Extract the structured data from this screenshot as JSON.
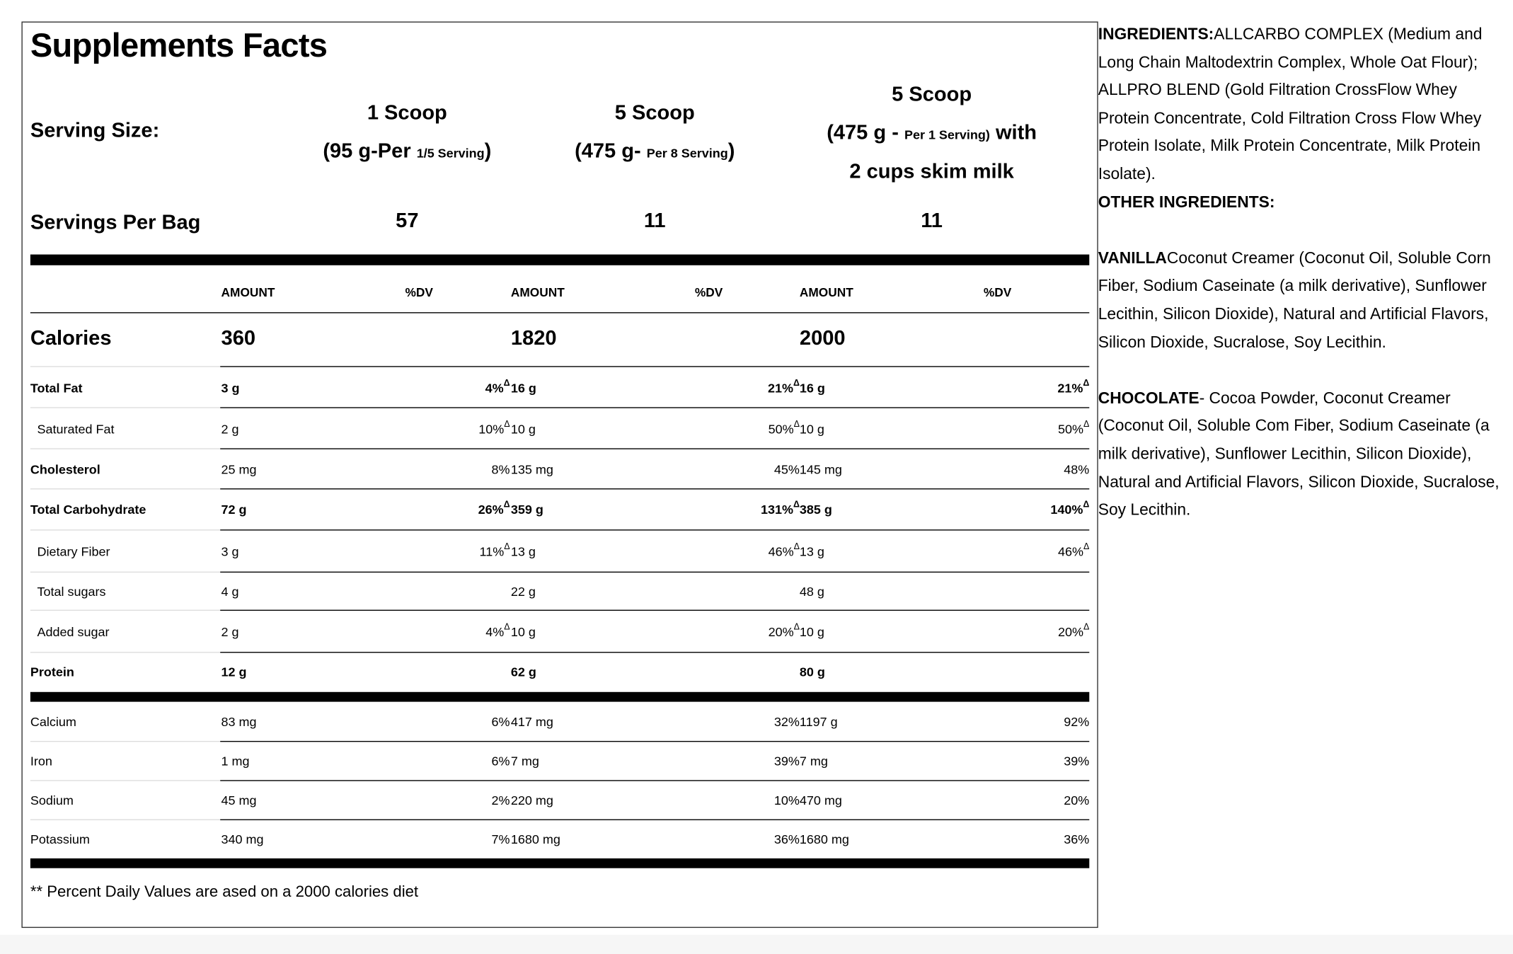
{
  "title": "Supplements Facts",
  "serving_size": {
    "label": "Serving Size:",
    "columns": [
      {
        "line1": "1 Scoop",
        "line2_main": "(95 g-Per ",
        "line2_small": "1/5 Serving",
        "line2_end": ")",
        "line3": ""
      },
      {
        "line1": "5 Scoop",
        "line2_main": "(475 g- ",
        "line2_small": "Per 8 Serving",
        "line2_end": ")",
        "line3": ""
      },
      {
        "line1": "5 Scoop",
        "line2_main": "(475 g - ",
        "line2_small": "Per 1 Serving)",
        "line2_end": " with",
        "line3": "2 cups skim milk"
      }
    ]
  },
  "servings_per_bag": {
    "label": "Servings Per Bag",
    "values": [
      "57",
      "11",
      "11"
    ]
  },
  "headers": {
    "amount": "AMOUNT",
    "dv": "%DV"
  },
  "calories": {
    "label": "Calories",
    "values": [
      "360",
      "1820",
      "2000"
    ]
  },
  "delta_symbol": "Δ",
  "nutrients": [
    {
      "label": "Total Fat",
      "bold": true,
      "indent": false,
      "cols": [
        [
          "3 g",
          "4%",
          true
        ],
        [
          "16 g",
          "21%",
          true
        ],
        [
          "16 g",
          "21%",
          true
        ]
      ]
    },
    {
      "label": "Saturated Fat",
      "bold": false,
      "indent": true,
      "cols": [
        [
          "2 g",
          "10%",
          true
        ],
        [
          "10 g",
          "50%",
          true
        ],
        [
          "10 g",
          "50%",
          true
        ]
      ]
    },
    {
      "label": "Cholesterol",
      "bold": true,
      "indent": false,
      "cols": [
        [
          "25 mg",
          "8%",
          false
        ],
        [
          "135 mg",
          "45%",
          false
        ],
        [
          "145 mg",
          "48%",
          false
        ]
      ],
      "amount_bold": false
    },
    {
      "label": "Total Carbohydrate",
      "bold": true,
      "indent": false,
      "cols": [
        [
          "72 g",
          "26%",
          true
        ],
        [
          "359 g",
          "131%",
          true
        ],
        [
          "385 g",
          "140%",
          true
        ]
      ]
    },
    {
      "label": "Dietary Fiber",
      "bold": false,
      "indent": true,
      "cols": [
        [
          "3 g",
          "11%",
          true
        ],
        [
          "13 g",
          "46%",
          true
        ],
        [
          "13 g",
          "46%",
          true
        ]
      ]
    },
    {
      "label": "Total sugars",
      "bold": false,
      "indent": true,
      "cols": [
        [
          "4 g",
          "",
          false
        ],
        [
          "22 g",
          "",
          false
        ],
        [
          "48 g",
          "",
          false
        ]
      ]
    },
    {
      "label": "Added sugar",
      "bold": false,
      "indent": true,
      "cols": [
        [
          "2 g",
          "4%",
          true
        ],
        [
          "10 g",
          "20%",
          true
        ],
        [
          "10 g",
          "20%",
          true
        ]
      ]
    },
    {
      "label": "Protein",
      "bold": true,
      "indent": false,
      "cols": [
        [
          "12 g",
          "",
          false
        ],
        [
          "62 g",
          "",
          false
        ],
        [
          "80 g",
          "",
          false
        ]
      ]
    }
  ],
  "minerals": [
    {
      "label": "Calcium",
      "cols": [
        [
          "83 mg",
          "6%"
        ],
        [
          "417 mg",
          "32%"
        ],
        [
          "1197 g",
          "92%"
        ]
      ]
    },
    {
      "label": "Iron",
      "cols": [
        [
          "1 mg",
          "6%"
        ],
        [
          "7 mg",
          "39%"
        ],
        [
          "7 mg",
          "39%"
        ]
      ]
    },
    {
      "label": "Sodium",
      "cols": [
        [
          "45 mg",
          "2%"
        ],
        [
          "220 mg",
          "10%"
        ],
        [
          "470 mg",
          "20%"
        ]
      ]
    },
    {
      "label": "Potassium",
      "cols": [
        [
          "340 mg",
          "7%"
        ],
        [
          "1680 mg",
          "36%"
        ],
        [
          "1680 mg",
          "36%"
        ]
      ]
    }
  ],
  "footnote": "** Percent Daily Values are ased on a 2000 calories diet",
  "ingredients": {
    "heading": "INGREDIENTS:",
    "text": "ALLCARBO COMPLEX (Medium and Long Chain Maltodextrin Complex, Whole Oat Flour); ALLPRO BLEND (Gold Filtration CrossFlow Whey Protein Concentrate, Cold Filtration Cross Flow Whey Protein Isolate, Milk Protein Concentrate, Milk Protein Isolate).",
    "other_heading": "OTHER INGREDIENTS:",
    "vanilla_heading": "VANILLA",
    "vanilla_text": "Coconut Creamer (Coconut Oil, Soluble Corn Fiber, Sodium Caseinate (a milk derivative), Sunflower Lecithin, Silicon Dioxide), Natural and Artificial Flavors, Silicon Dioxide, Sucralose, Soy Lecithin.",
    "chocolate_heading": "CHOCOLATE",
    "chocolate_text": "- Cocoa Powder, Coconut Creamer (Coconut Oil, Soluble Com Fiber, Sodium Caseinate (a milk derivative), Sunflower Lecithin, Silicon Dioxide), Natural and Artificial Flavors, Silicon Dioxide, Sucralose, Soy Lecithin."
  }
}
